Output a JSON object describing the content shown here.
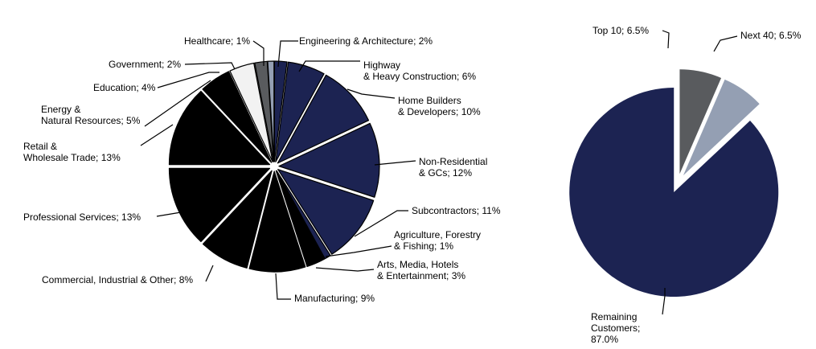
{
  "chart_data": [
    {
      "type": "pie",
      "title": "",
      "slices": [
        {
          "name": "Engineering & Architecture",
          "value": 2,
          "label": [
            "Engineering & Architecture; 2%"
          ],
          "color": "#1c2352"
        },
        {
          "name": "Highway & Heavy Construction",
          "value": 6,
          "label": [
            "Highway",
            "& Heavy Construction; 6%"
          ],
          "color": "#1c2352"
        },
        {
          "name": "Home Builders & Developers",
          "value": 10,
          "label": [
            "Home Builders",
            "& Developers; 10%"
          ],
          "color": "#1c2352"
        },
        {
          "name": "Non-Residential & GCs",
          "value": 12,
          "label": [
            "Non-Residential",
            "& GCs; 12%"
          ],
          "color": "#1c2352"
        },
        {
          "name": "Subcontractors",
          "value": 11,
          "label": [
            "Subcontractors; 11%"
          ],
          "color": "#1c2352"
        },
        {
          "name": "Agriculture, Forestry & Fishing",
          "value": 1,
          "label": [
            "Agriculture, Forestry",
            "& Fishing; 1%"
          ],
          "color": "#1c2352"
        },
        {
          "name": "Arts, Media, Hotels & Entertainment",
          "value": 3,
          "label": [
            "Arts, Media, Hotels",
            "& Entertainment; 3%"
          ],
          "color": "#000000"
        },
        {
          "name": "Manufacturing",
          "value": 9,
          "label": [
            "Manufacturing; 9%"
          ],
          "color": "#000000"
        },
        {
          "name": "Commercial, Industrial & Other",
          "value": 8,
          "label": [
            "Commercial, Industrial & Other; 8%"
          ],
          "color": "#000000"
        },
        {
          "name": "Professional Services",
          "value": 13,
          "label": [
            "Professional Services; 13%"
          ],
          "color": "#000000"
        },
        {
          "name": "Retail & Wholesale Trade",
          "value": 13,
          "label": [
            "Retail &",
            "Wholesale Trade; 13%"
          ],
          "color": "#000000"
        },
        {
          "name": "Energy & Natural Resources",
          "value": 5,
          "label": [
            "Energy &",
            "Natural Resources; 5%"
          ],
          "color": "#000000"
        },
        {
          "name": "Education",
          "value": 4,
          "label": [
            "Education; 4%"
          ],
          "color": "#f2f2f2"
        },
        {
          "name": "Government",
          "value": 2,
          "label": [
            "Government; 2%"
          ],
          "color": "#595b5e"
        },
        {
          "name": "Healthcare",
          "value": 1,
          "label": [
            "Healthcare; 1%"
          ],
          "color": "#949fb3"
        }
      ]
    },
    {
      "type": "pie",
      "title": "",
      "slices": [
        {
          "name": "Top 10",
          "value": 6.5,
          "label": [
            "Top 10; 6.5%"
          ],
          "color": "#595b5e"
        },
        {
          "name": "Next 40",
          "value": 6.5,
          "label": [
            "Next 40; 6.5%"
          ],
          "color": "#949fb3"
        },
        {
          "name": "Remaining Customers",
          "value": 87.0,
          "label": [
            "Remaining",
            "Customers;",
            "87.0%"
          ],
          "color": "#1c2352"
        }
      ]
    }
  ]
}
